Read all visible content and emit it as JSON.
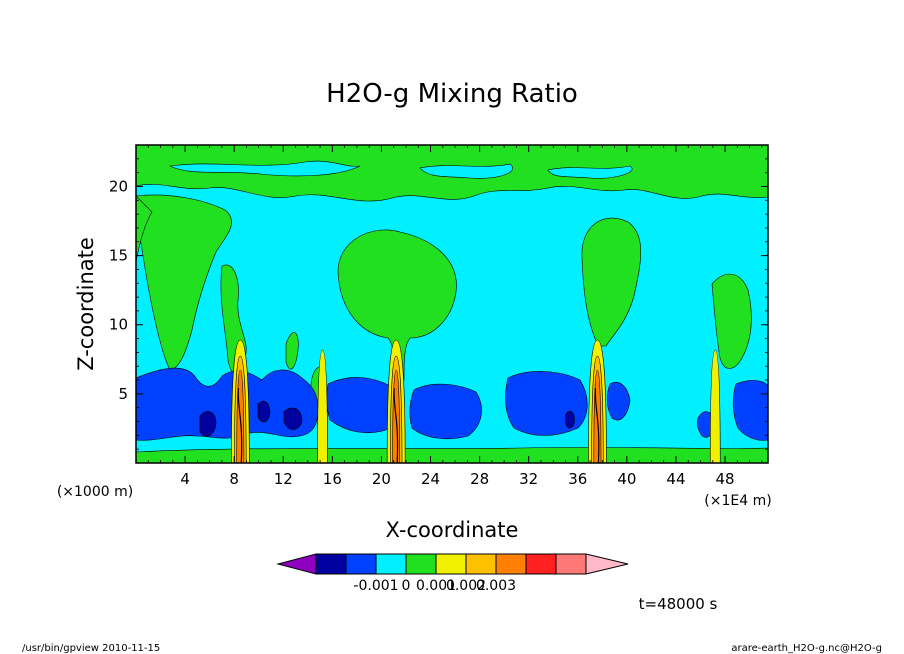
{
  "chart_data": {
    "type": "heatmap",
    "title": "H2O-g Mixing Ratio",
    "xlabel": "X-coordinate",
    "ylabel": "Z-coordinate",
    "x_unit": "(×1E4 m)",
    "y_unit": "(×1000 m)",
    "xlim": [
      0,
      51.5
    ],
    "ylim": [
      0,
      23
    ],
    "x_ticks": [
      "4",
      "8",
      "12",
      "16",
      "20",
      "24",
      "28",
      "32",
      "36",
      "40",
      "44",
      "48"
    ],
    "x_tick_values": [
      4,
      8,
      12,
      16,
      20,
      24,
      28,
      32,
      36,
      40,
      44,
      48
    ],
    "y_ticks": [
      "5",
      "10",
      "15",
      "20"
    ],
    "y_tick_values": [
      5,
      10,
      15,
      20
    ],
    "time_label": "t=48000 s",
    "colorbar": {
      "colors": [
        "#9000c0",
        "#0000a0",
        "#0040ff",
        "#00f0ff",
        "#20e020",
        "#f0f000",
        "#ffc000",
        "#ff8000",
        "#ff2020",
        "#ff7878",
        "#ffb8c8"
      ],
      "tick_labels": [
        "-0.001",
        "0",
        "0.001",
        "0.002",
        "0.003"
      ]
    },
    "band_colors": {
      "green": "#20e020",
      "cyan": "#00f0ff",
      "blue": "#0040ff",
      "dark_blue": "#0000a0",
      "yellow": "#f0f000",
      "orange": "#ffc000",
      "dark_orange": "#ff8000",
      "red": "#ff2020"
    },
    "plumes_x": [
      8.5,
      21.2,
      37.6
    ],
    "weak_plumes_x": [
      15.2,
      47.2
    ]
  },
  "footer": {
    "left": "/usr/bin/gpview   2010-11-15",
    "right": "arare-earth_H2O-g.nc@H2O-g"
  }
}
